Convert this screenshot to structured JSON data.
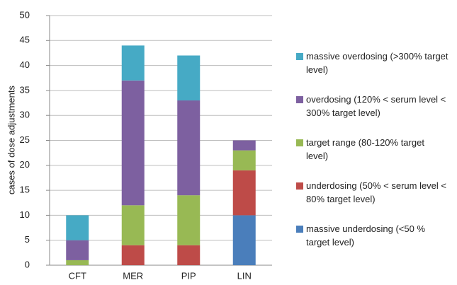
{
  "chart_data": {
    "type": "stacked_bar",
    "y_label": "cases of dose adjustments",
    "categories": [
      "CFT",
      "MER",
      "PIP",
      "LIN"
    ],
    "series": [
      {
        "name": "massive underdosing (<50 % target level)",
        "color": "#4a7ebb",
        "values": [
          0,
          0,
          0,
          10
        ]
      },
      {
        "name": "underdosing (50% < serum level < 80% target level)",
        "color": "#be4b48",
        "values": [
          0,
          4,
          4,
          9
        ]
      },
      {
        "name": "target range (80-120% target level)",
        "color": "#98b954",
        "values": [
          1,
          8,
          10,
          4
        ]
      },
      {
        "name": "overdosing (120% < serum level < 300% target level)",
        "color": "#7d60a0",
        "values": [
          4,
          25,
          19,
          2
        ]
      },
      {
        "name": "massive overdosing (>300% target level)",
        "color": "#46aac5",
        "values": [
          5,
          7,
          9,
          0
        ]
      }
    ],
    "ylim": [
      0,
      50
    ],
    "yticks": [
      0,
      5,
      10,
      15,
      20,
      25,
      30,
      35,
      40,
      45,
      50
    ],
    "grid": true,
    "legend": "right"
  }
}
